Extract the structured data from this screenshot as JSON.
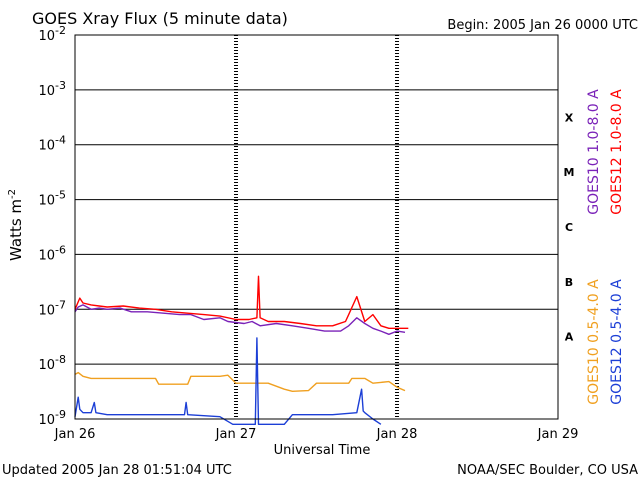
{
  "header": {
    "title": "GOES Xray Flux (5 minute data)",
    "begin": "Begin:  2005 Jan 26 0000 UTC"
  },
  "footer": {
    "updated": "Updated 2005 Jan 28 01:51:04 UTC",
    "credit": "NOAA/SEC Boulder, CO USA"
  },
  "chart_data": {
    "type": "line",
    "xlabel": "Universal Time",
    "ylabel": "Watts m",
    "ylabel_exp": "-2",
    "yscale": "log",
    "xlim": [
      0,
      3
    ],
    "ylim_exponents": [
      -9,
      -2
    ],
    "grid": true,
    "x_ticks": [
      {
        "pos": 0,
        "label": "Jan 26"
      },
      {
        "pos": 1,
        "label": "Jan 27"
      },
      {
        "pos": 2,
        "label": "Jan 28"
      },
      {
        "pos": 3,
        "label": "Jan 29"
      }
    ],
    "y_ticks": [
      {
        "exp": -9,
        "label": "10",
        "sup": "-9"
      },
      {
        "exp": -8,
        "label": "10",
        "sup": "-8"
      },
      {
        "exp": -7,
        "label": "10",
        "sup": "-7"
      },
      {
        "exp": -6,
        "label": "10",
        "sup": "-6"
      },
      {
        "exp": -5,
        "label": "10",
        "sup": "-5"
      },
      {
        "exp": -4,
        "label": "10",
        "sup": "-4"
      },
      {
        "exp": -3,
        "label": "10",
        "sup": "-3"
      },
      {
        "exp": -2,
        "label": "10",
        "sup": "-2"
      }
    ],
    "flare_classes": [
      {
        "label": "X",
        "exp": -3.5
      },
      {
        "label": "M",
        "exp": -4.5
      },
      {
        "label": "C",
        "exp": -5.5
      },
      {
        "label": "B",
        "exp": -6.5
      },
      {
        "label": "A",
        "exp": -7.5
      }
    ],
    "series": [
      {
        "name": "GOES10 1.0-8.0 A",
        "color": "#7a22b8",
        "x": [
          0.0,
          0.02,
          0.05,
          0.1,
          0.15,
          0.2,
          0.28,
          0.35,
          0.45,
          0.55,
          0.65,
          0.72,
          0.8,
          0.9,
          0.95,
          1.05,
          1.1,
          1.15,
          1.25,
          1.35,
          1.45,
          1.55,
          1.65,
          1.7,
          1.75,
          1.8,
          1.85,
          1.9,
          1.95,
          2.0,
          2.05
        ],
        "y": [
          9e-08,
          1.1e-07,
          1.2e-07,
          1e-07,
          1.05e-07,
          1e-07,
          1.05e-07,
          9e-08,
          9e-08,
          8.5e-08,
          8e-08,
          8e-08,
          6.5e-08,
          7e-08,
          6e-08,
          5.5e-08,
          6e-08,
          5e-08,
          5.5e-08,
          5e-08,
          4.5e-08,
          4e-08,
          4e-08,
          5e-08,
          7e-08,
          5.5e-08,
          4.5e-08,
          4e-08,
          3.5e-08,
          4e-08,
          3.8e-08
        ]
      },
      {
        "name": "GOES12 1.0-8.0 A",
        "color": "#ff0000",
        "x": [
          0.0,
          0.03,
          0.05,
          0.1,
          0.15,
          0.2,
          0.3,
          0.4,
          0.5,
          0.6,
          0.7,
          0.8,
          0.9,
          1.0,
          1.08,
          1.13,
          1.14,
          1.15,
          1.2,
          1.3,
          1.4,
          1.5,
          1.6,
          1.68,
          1.7,
          1.75,
          1.8,
          1.85,
          1.9,
          1.95,
          2.0,
          2.07
        ],
        "y": [
          1e-07,
          1.6e-07,
          1.3e-07,
          1.2e-07,
          1.15e-07,
          1.1e-07,
          1.15e-07,
          1.05e-07,
          1e-07,
          9e-08,
          8.5e-08,
          8e-08,
          7.5e-08,
          6.5e-08,
          6.5e-08,
          7e-08,
          4e-07,
          7e-08,
          6e-08,
          6e-08,
          5.5e-08,
          5e-08,
          5e-08,
          6e-08,
          8e-08,
          1.7e-07,
          6e-08,
          8e-08,
          5e-08,
          4.5e-08,
          4.5e-08,
          4.5e-08
        ]
      },
      {
        "name": "GOES10 0.5-4.0 A",
        "color": "#f0a020",
        "x": [
          0.0,
          0.02,
          0.05,
          0.1,
          0.3,
          0.5,
          0.52,
          0.7,
          0.72,
          0.9,
          0.95,
          1.0,
          1.2,
          1.3,
          1.35,
          1.45,
          1.5,
          1.7,
          1.72,
          1.8,
          1.85,
          1.95,
          2.0,
          2.05
        ],
        "y": [
          6.5e-09,
          7e-09,
          6e-09,
          5.5e-09,
          5.5e-09,
          5.5e-09,
          4.3e-09,
          4.3e-09,
          6e-09,
          6e-09,
          6.3e-09,
          4.5e-09,
          4.5e-09,
          3.5e-09,
          3.2e-09,
          3.3e-09,
          4.5e-09,
          4.5e-09,
          5.5e-09,
          5.5e-09,
          4.5e-09,
          4.8e-09,
          3.8e-09,
          3.3e-09
        ]
      },
      {
        "name": "GOES12 0.5-4.0 A",
        "color": "#1c3fd6",
        "x": [
          0.0,
          0.02,
          0.03,
          0.05,
          0.1,
          0.12,
          0.13,
          0.2,
          0.4,
          0.6,
          0.68,
          0.69,
          0.7,
          0.9,
          0.98,
          0.99,
          1.05,
          1.1,
          1.12,
          1.13,
          1.14,
          1.15,
          1.3,
          1.35,
          1.4,
          1.6,
          1.75,
          1.78,
          1.79,
          1.8,
          1.85,
          1.9
        ],
        "y": [
          1.1e-09,
          2.5e-09,
          1.5e-09,
          1.3e-09,
          1.3e-09,
          2e-09,
          1.3e-09,
          1.2e-09,
          1.2e-09,
          1.2e-09,
          1.2e-09,
          2e-09,
          1.2e-09,
          1.1e-09,
          8e-10,
          8e-10,
          8e-10,
          8e-10,
          8e-10,
          3e-08,
          8e-10,
          8e-10,
          8e-10,
          1.2e-09,
          1.2e-09,
          1.2e-09,
          1.3e-09,
          3.5e-09,
          1.4e-09,
          1.3e-09,
          1e-09,
          8e-10
        ]
      }
    ]
  }
}
